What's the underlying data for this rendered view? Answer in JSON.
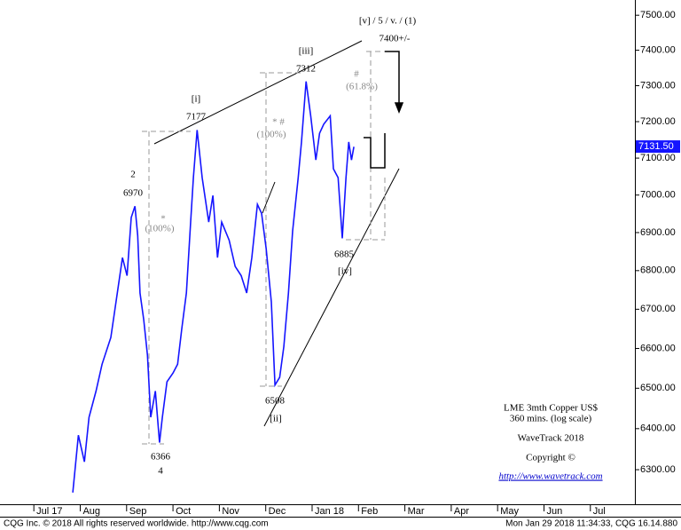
{
  "chart_data": {
    "type": "line",
    "log_scale": true,
    "series": [
      {
        "name": "LME 3mth Copper US$",
        "color": "#1515ff",
        "x": [
          0.84,
          0.96,
          1.09,
          1.19,
          1.34,
          1.47,
          1.66,
          1.8,
          1.91,
          2.01,
          2.1,
          2.18,
          2.24,
          2.29,
          2.37,
          2.45,
          2.52,
          2.62,
          2.71,
          2.77,
          2.87,
          3.0,
          3.1,
          3.19,
          3.29,
          3.38,
          3.44,
          3.52,
          3.63,
          3.77,
          3.86,
          3.96,
          4.05,
          4.21,
          4.34,
          4.47,
          4.59,
          4.7,
          4.82,
          4.91,
          5.01,
          5.12,
          5.2,
          5.3,
          5.39,
          5.49,
          5.58,
          5.7,
          5.77,
          5.87,
          5.97,
          6.08,
          6.16,
          6.25,
          6.39,
          6.46,
          6.56,
          6.65,
          6.73,
          6.79,
          6.85,
          6.9
        ],
        "values": [
          6245,
          6384,
          6319,
          6428,
          6493,
          6560,
          6628,
          6742,
          6834,
          6787,
          6940,
          6970,
          6892,
          6742,
          6673,
          6583,
          6428,
          6493,
          6366,
          6428,
          6516,
          6538,
          6560,
          6650,
          6742,
          6928,
          7047,
          7177,
          7047,
          6928,
          6999,
          6834,
          6928,
          6880,
          6811,
          6787,
          6742,
          6834,
          6975,
          6951,
          6857,
          6719,
          6508,
          6527,
          6605,
          6742,
          6904,
          7047,
          7144,
          7312,
          7216,
          7095,
          7168,
          7193,
          7216,
          7071,
          7047,
          6885,
          7047,
          7144,
          7095,
          7131
        ]
      }
    ],
    "xlim": [
      -0.73,
      12.96
    ],
    "xticks": [
      {
        "value": 0,
        "label": "Jul 17"
      },
      {
        "value": 1,
        "label": "Aug"
      },
      {
        "value": 2,
        "label": "Sep"
      },
      {
        "value": 3,
        "label": "Oct"
      },
      {
        "value": 4,
        "label": "Nov"
      },
      {
        "value": 5,
        "label": "Dec"
      },
      {
        "value": 6,
        "label": "Jan 18"
      },
      {
        "value": 7,
        "label": "Feb"
      },
      {
        "value": 8,
        "label": "Mar"
      },
      {
        "value": 9,
        "label": "Apr"
      },
      {
        "value": 10,
        "label": "May"
      },
      {
        "value": 11,
        "label": "Jun"
      },
      {
        "value": 12,
        "label": "Jul"
      }
    ],
    "ylim": [
      6217,
      7544
    ],
    "yticks": [
      {
        "value": 6300,
        "label": "6300.00"
      },
      {
        "value": 6400,
        "label": "6400.00"
      },
      {
        "value": 6500,
        "label": "6500.00"
      },
      {
        "value": 6600,
        "label": "6600.00"
      },
      {
        "value": 6700,
        "label": "6700.00"
      },
      {
        "value": 6800,
        "label": "6800.00"
      },
      {
        "value": 6900,
        "label": "6900.00"
      },
      {
        "value": 7000,
        "label": "7000.00"
      },
      {
        "value": 7100,
        "label": "7100.00"
      },
      {
        "value": 7200,
        "label": "7200.00"
      },
      {
        "value": 7300,
        "label": "7300.00"
      },
      {
        "value": 7400,
        "label": "7400.00"
      },
      {
        "value": 7500,
        "label": "7500.00"
      }
    ],
    "last_price": {
      "value": 7131.5,
      "label": "7131.50"
    },
    "annotations": [
      "[v] / 5 / v. / (1)",
      "7400+/-",
      "[iii]",
      "7312",
      "[i]",
      "7177",
      "2",
      "6970",
      "*",
      "(100%)",
      "* #",
      "(100%)",
      "#",
      "(61.8%)",
      "6885",
      "[iv]",
      "6508",
      "[ii]",
      "6366",
      "4"
    ],
    "info": [
      "LME 3mth Copper US$",
      "360 mins. (log scale)",
      "WaveTrack 2018",
      "Copyright ©",
      "http://www.wavetrack.com"
    ]
  },
  "footer": {
    "left": "CQG Inc. © 2018 All rights reserved worldwide.  http://www.cqg.com",
    "right": "Mon Jan 29 2018 11:34:33, CQG 16.14.880"
  }
}
